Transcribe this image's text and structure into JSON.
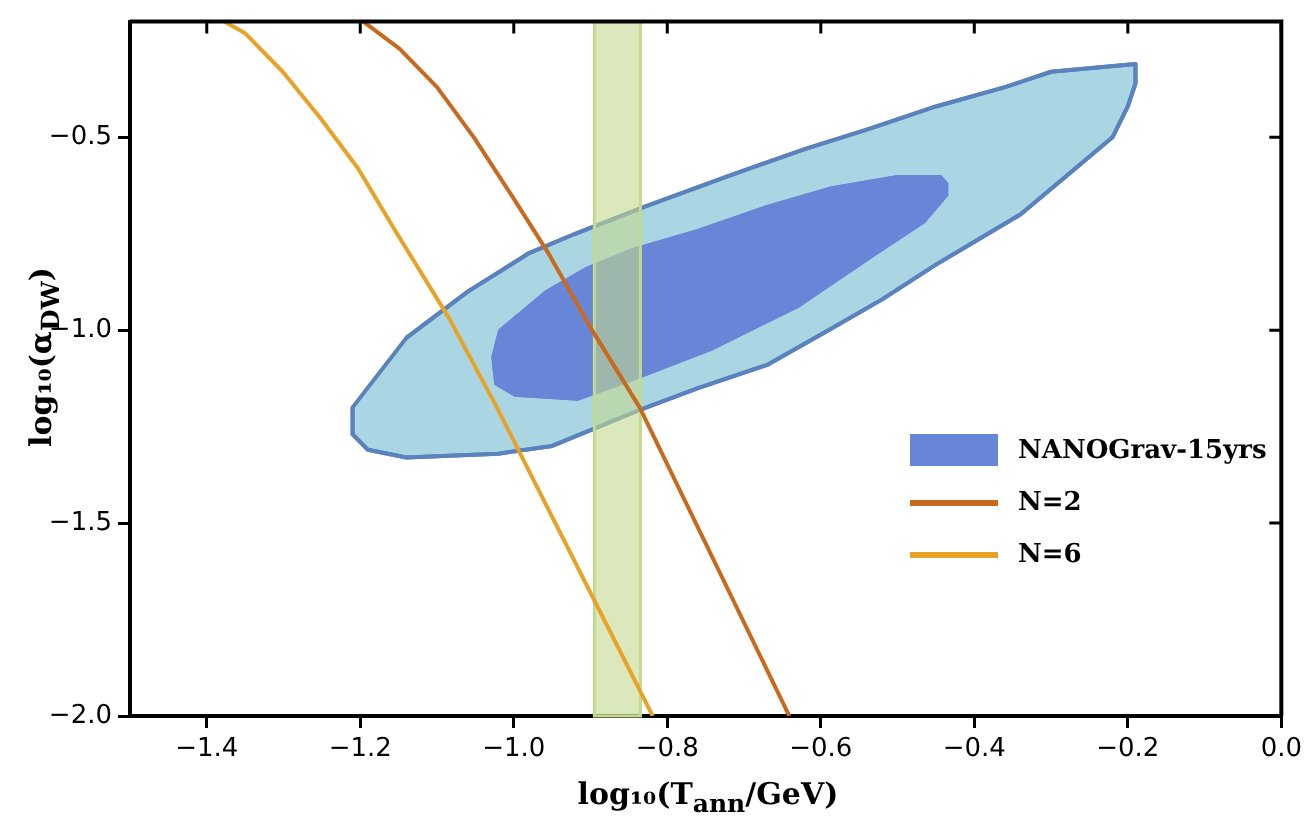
{
  "chart_data": {
    "type": "line",
    "xlabel": "log₁₀(T$_{ann}$/GeV)",
    "ylabel": "log₁₀(α$_{DW}$)",
    "xlim": [
      -1.5,
      0.0
    ],
    "ylim": [
      -2.0,
      -0.2
    ],
    "xticks": [
      {
        "value": -1.4,
        "label": "−1.4"
      },
      {
        "value": -1.2,
        "label": "−1.2"
      },
      {
        "value": -1.0,
        "label": "−1.0"
      },
      {
        "value": -0.8,
        "label": "−0.8"
      },
      {
        "value": -0.6,
        "label": "−0.6"
      },
      {
        "value": -0.4,
        "label": "−0.4"
      },
      {
        "value": -0.2,
        "label": "−0.2"
      },
      {
        "value": 0.0,
        "label": "0.0"
      }
    ],
    "yticks": [
      {
        "value": -2.0,
        "label": "−2.0"
      },
      {
        "value": -1.5,
        "label": "−1.5"
      },
      {
        "value": -1.0,
        "label": "−1.0"
      },
      {
        "value": -0.5,
        "label": "−0.5"
      }
    ],
    "grid": false,
    "legend": "right",
    "marker": "none",
    "bands": [
      {
        "axis": "x",
        "from": -0.895,
        "to": -0.835,
        "color": "#c3d98f"
      }
    ],
    "series": [
      {
        "type": "area",
        "color": "#aad6e3",
        "x": [
          -1.21,
          -1.21,
          -1.19,
          -1.14,
          -1.02,
          -0.95,
          -0.84,
          -0.76,
          -0.67,
          -0.59,
          -0.52,
          -0.45,
          -0.34,
          -0.28,
          -0.22,
          -0.2,
          -0.19,
          -0.19,
          -0.3,
          -0.36,
          -0.45,
          -0.54,
          -0.62,
          -0.72,
          -0.83,
          -0.92,
          -0.98,
          -1.06,
          -1.14
        ],
        "values": [
          -1.2,
          -1.27,
          -1.31,
          -1.33,
          -1.32,
          -1.3,
          -1.21,
          -1.15,
          -1.09,
          -1.0,
          -0.92,
          -0.83,
          -0.7,
          -0.6,
          -0.5,
          -0.42,
          -0.36,
          -0.31,
          -0.33,
          -0.37,
          -0.42,
          -0.48,
          -0.53,
          -0.6,
          -0.68,
          -0.75,
          -0.8,
          -0.9,
          -1.02
        ]
      },
      {
        "type": "area",
        "name": "NANOGrav-15yrs",
        "color": "#6886d8",
        "x": [
          -0.435,
          -0.444,
          -0.5,
          -0.587,
          -0.673,
          -0.76,
          -0.846,
          -0.907,
          -0.959,
          -1.019,
          -1.028,
          -1.024,
          -0.998,
          -0.916,
          -0.846,
          -0.742,
          -0.63,
          -0.526,
          -0.465,
          -0.435
        ],
        "values": [
          -0.62,
          -0.6,
          -0.6,
          -0.63,
          -0.68,
          -0.74,
          -0.79,
          -0.84,
          -0.9,
          -1.0,
          -1.07,
          -1.14,
          -1.17,
          -1.18,
          -1.13,
          -1.05,
          -0.94,
          -0.8,
          -0.72,
          -0.65
        ]
      },
      {
        "type": "line",
        "name": "N=2",
        "color": "#c8691e",
        "x": [
          -1.196,
          -1.149,
          -1.1,
          -1.052,
          -1.003,
          -0.955,
          -0.901,
          -0.836,
          -0.641
        ],
        "values": [
          -0.2,
          -0.27,
          -0.37,
          -0.5,
          -0.65,
          -0.8,
          -0.99,
          -1.2,
          -2.0
        ]
      },
      {
        "type": "line",
        "name": "N=6",
        "color": "#e8a227",
        "x": [
          -1.377,
          -1.35,
          -1.301,
          -1.252,
          -1.203,
          -1.155,
          -1.084,
          -1.022,
          -0.819
        ],
        "values": [
          -0.2,
          -0.23,
          -0.33,
          -0.45,
          -0.58,
          -0.74,
          -0.97,
          -1.2,
          -2.0
        ]
      }
    ]
  }
}
